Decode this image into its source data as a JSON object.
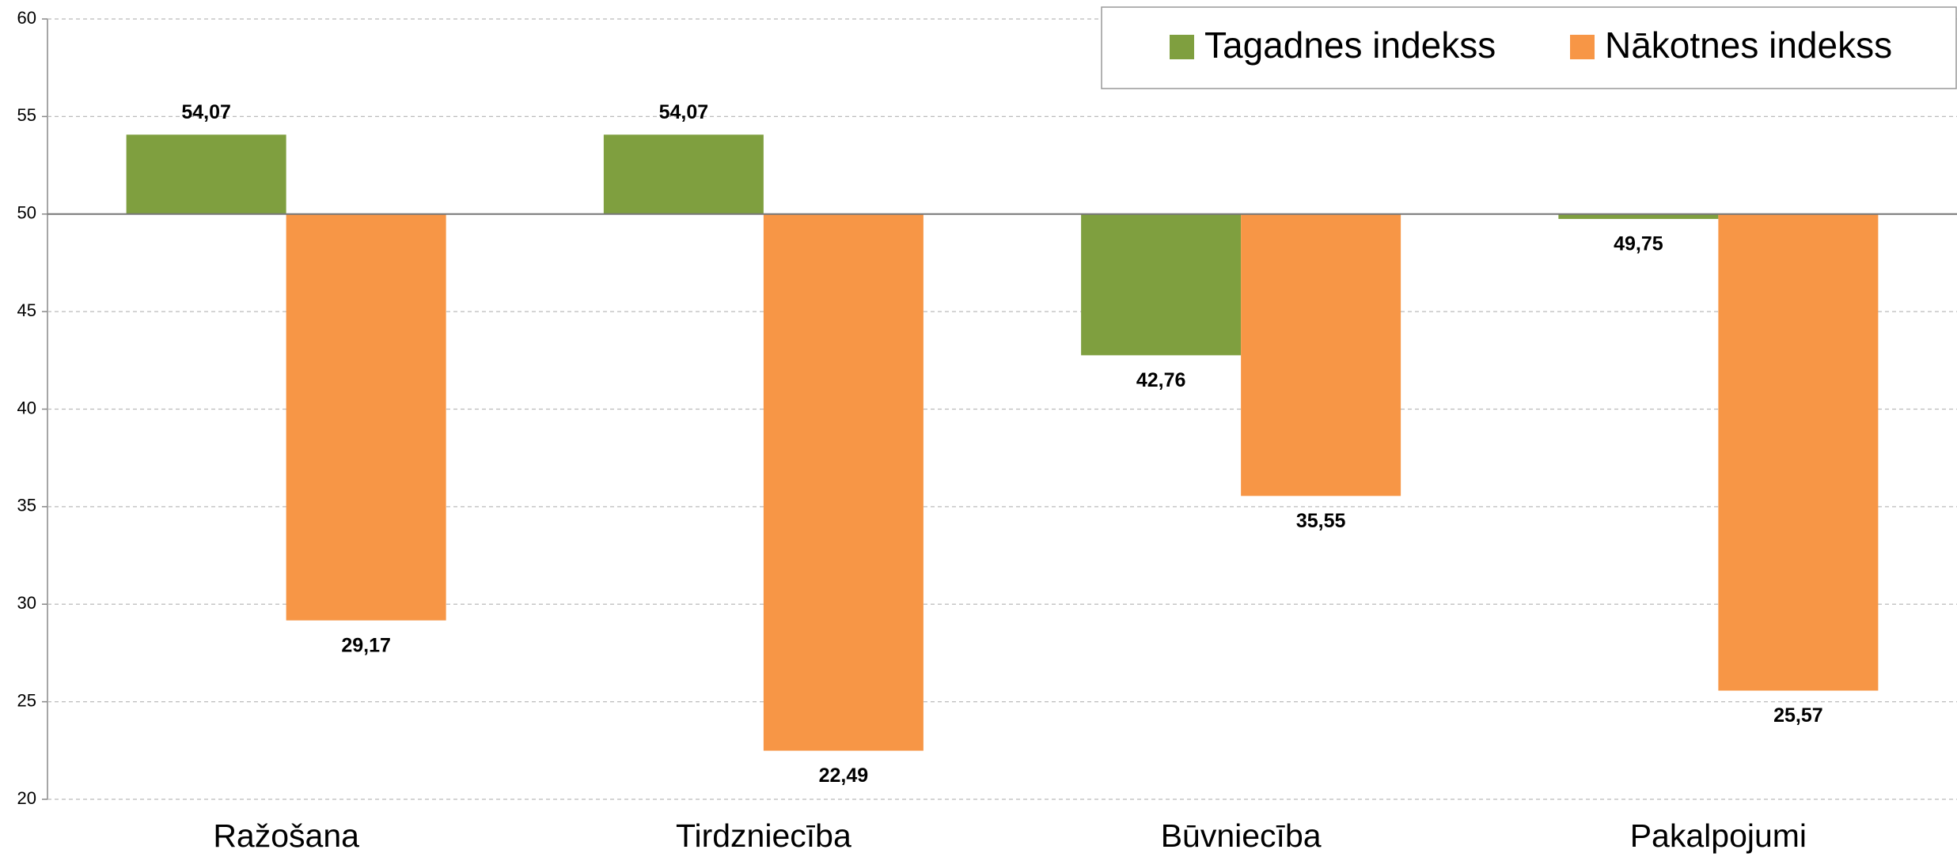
{
  "chart_data": {
    "type": "bar",
    "categories": [
      "Ražošana",
      "Tirdzniecība",
      "Būvniecība",
      "Pakalpojumi"
    ],
    "series": [
      {
        "name": "Tagadnes indekss",
        "color": "#7f9f3f",
        "values": [
          54.07,
          54.07,
          42.76,
          49.75
        ],
        "value_labels": [
          "54,07",
          "54,07",
          "42,76",
          "49,75"
        ]
      },
      {
        "name": "Nākotnes indekss",
        "color": "#f79646",
        "values": [
          29.17,
          22.49,
          35.55,
          25.57
        ],
        "value_labels": [
          "29,17",
          "22,49",
          "35,55",
          "25,57"
        ]
      }
    ],
    "ylim": [
      20,
      60
    ],
    "yticks": [
      20,
      25,
      30,
      35,
      40,
      45,
      50,
      55,
      60
    ],
    "bar_base": 50,
    "grid": true,
    "legend": "upper right"
  }
}
